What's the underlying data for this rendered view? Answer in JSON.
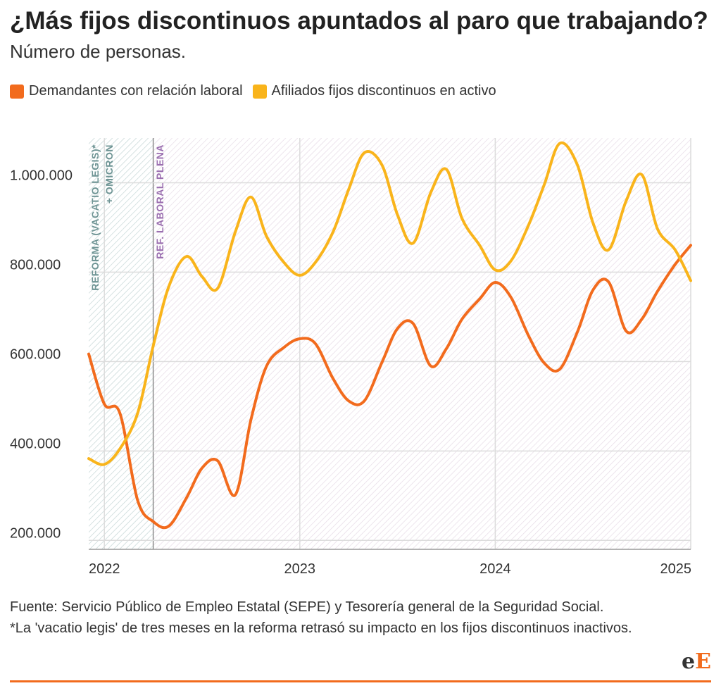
{
  "title": "¿Más fijos discontinuos apuntados al paro que trabajando?",
  "subtitle": "Número de personas.",
  "colors": {
    "demandantes": "#f26b1d",
    "afiliados": "#f9b41b",
    "band1": "#6e9494",
    "band2": "#9b6fb0"
  },
  "legend": [
    {
      "label": "Demandantes con relación laboral",
      "color": "#f26b1d"
    },
    {
      "label": "Afiliados fijos discontinuos en activo",
      "color": "#f9b41b"
    }
  ],
  "annotations": {
    "band1_line1": "REFORMA (VACATIO LEGIS)*",
    "band1_line2": "+ OMICRON",
    "band2": "REF. LABORAL PLENA"
  },
  "footer": {
    "source": "Fuente: Servicio Público de Empleo Estatal (SEPE) y Tesorería general de la Seguridad Social.",
    "note": "*La 'vacatio legis' de tres meses en la reforma retrasó su impacto en los fijos discontinuos inactivos."
  },
  "logo": {
    "lower": "e",
    "upper": "E"
  },
  "chart_data": {
    "type": "line",
    "x_axis": {
      "min": 2021.92,
      "max": 2025.0,
      "ticks": [
        2022,
        2023,
        2024,
        2025
      ],
      "tick_labels": [
        "2022",
        "2023",
        "2024",
        "2025"
      ]
    },
    "y_axis": {
      "min": 180000,
      "max": 1100000,
      "ticks": [
        200000,
        400000,
        600000,
        800000,
        1000000
      ],
      "tick_labels": [
        "200.000",
        "400.000",
        "600.000",
        "800.000",
        "1.000.000"
      ]
    },
    "grid": true,
    "shaded_periods": [
      {
        "label": "REFORMA (VACATIO LEGIS)* + OMICRON",
        "from": 2021.92,
        "to": 2022.25,
        "pattern": "hatch-teal"
      },
      {
        "label": "REF. LABORAL PLENA",
        "from": 2022.25,
        "to": 2025.0,
        "pattern": "hatch-purple"
      }
    ],
    "series": [
      {
        "name": "Demandantes con relación laboral",
        "color": "#f26b1d",
        "points": [
          [
            2021.92,
            617000
          ],
          [
            2022.0,
            505000
          ],
          [
            2022.08,
            484000
          ],
          [
            2022.17,
            290000
          ],
          [
            2022.25,
            242000
          ],
          [
            2022.33,
            232000
          ],
          [
            2022.42,
            295000
          ],
          [
            2022.5,
            362000
          ],
          [
            2022.58,
            378000
          ],
          [
            2022.67,
            302000
          ],
          [
            2022.75,
            470000
          ],
          [
            2022.83,
            590000
          ],
          [
            2022.92,
            632000
          ],
          [
            2023.0,
            651000
          ],
          [
            2023.08,
            640000
          ],
          [
            2023.17,
            562000
          ],
          [
            2023.25,
            512000
          ],
          [
            2023.33,
            512000
          ],
          [
            2023.42,
            598000
          ],
          [
            2023.5,
            674000
          ],
          [
            2023.58,
            685000
          ],
          [
            2023.67,
            590000
          ],
          [
            2023.75,
            629000
          ],
          [
            2023.83,
            695000
          ],
          [
            2023.92,
            740000
          ],
          [
            2024.0,
            777000
          ],
          [
            2024.08,
            744000
          ],
          [
            2024.17,
            658000
          ],
          [
            2024.25,
            597000
          ],
          [
            2024.33,
            583000
          ],
          [
            2024.42,
            666000
          ],
          [
            2024.5,
            760000
          ],
          [
            2024.58,
            778000
          ],
          [
            2024.67,
            668000
          ],
          [
            2024.75,
            695000
          ],
          [
            2024.83,
            757000
          ],
          [
            2024.92,
            817000
          ],
          [
            2025.0,
            860000
          ]
        ]
      },
      {
        "name": "Afiliados fijos discontinuos en activo",
        "color": "#f9b41b",
        "points": [
          [
            2021.92,
            383000
          ],
          [
            2022.0,
            370000
          ],
          [
            2022.08,
            405000
          ],
          [
            2022.17,
            484000
          ],
          [
            2022.25,
            635000
          ],
          [
            2022.33,
            768000
          ],
          [
            2022.42,
            835000
          ],
          [
            2022.5,
            790000
          ],
          [
            2022.58,
            764000
          ],
          [
            2022.67,
            890000
          ],
          [
            2022.75,
            968000
          ],
          [
            2022.83,
            880000
          ],
          [
            2022.92,
            821000
          ],
          [
            2023.0,
            793000
          ],
          [
            2023.08,
            822000
          ],
          [
            2023.17,
            890000
          ],
          [
            2023.25,
            985000
          ],
          [
            2023.33,
            1067000
          ],
          [
            2023.42,
            1040000
          ],
          [
            2023.5,
            928000
          ],
          [
            2023.58,
            865000
          ],
          [
            2023.67,
            978000
          ],
          [
            2023.75,
            1030000
          ],
          [
            2023.83,
            920000
          ],
          [
            2023.92,
            860000
          ],
          [
            2024.0,
            805000
          ],
          [
            2024.08,
            825000
          ],
          [
            2024.17,
            905000
          ],
          [
            2024.25,
            995000
          ],
          [
            2024.33,
            1088000
          ],
          [
            2024.42,
            1040000
          ],
          [
            2024.5,
            910000
          ],
          [
            2024.58,
            850000
          ],
          [
            2024.67,
            960000
          ],
          [
            2024.75,
            1018000
          ],
          [
            2024.83,
            897000
          ],
          [
            2024.92,
            850000
          ],
          [
            2025.0,
            781000
          ]
        ]
      }
    ]
  }
}
